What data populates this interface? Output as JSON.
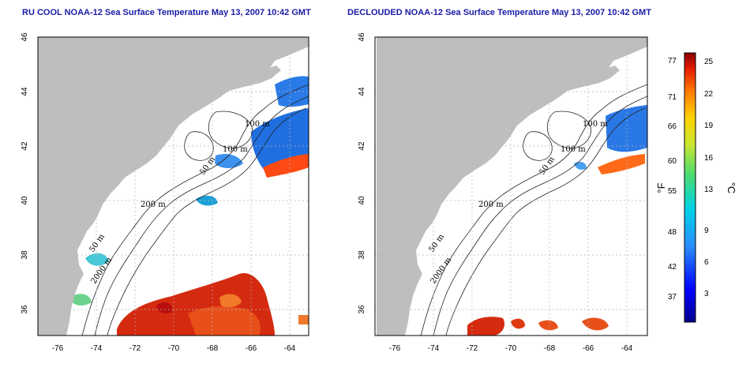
{
  "titles": {
    "left": "RU COOL NOAA-12 Sea Surface Temperature May 13, 2007 10:42 GMT",
    "right": "DECLOUDED NOAA-12 Sea Surface Temperature May 13, 2007 10:42 GMT"
  },
  "axes": {
    "lon_ticks": [
      "-76",
      "-74",
      "-72",
      "-70",
      "-68",
      "-66",
      "-64"
    ],
    "lat_ticks": [
      "46",
      "44",
      "42",
      "40",
      "38",
      "36"
    ]
  },
  "contour_labels": [
    "100 m",
    "100 m",
    "50 m",
    "200 m",
    "50 m",
    "2000 m"
  ],
  "colorbar": {
    "f_label": "°F",
    "c_label": "°C",
    "f_ticks": [
      "77",
      "71",
      "66",
      "60",
      "55",
      "48",
      "42",
      "37"
    ],
    "c_ticks": [
      "25",
      "22",
      "19",
      "16",
      "13",
      "9",
      "6",
      "3"
    ]
  },
  "colors": {
    "land": "#bebebe",
    "title": "#1a1aa6",
    "grid": "#b5b5b5"
  }
}
